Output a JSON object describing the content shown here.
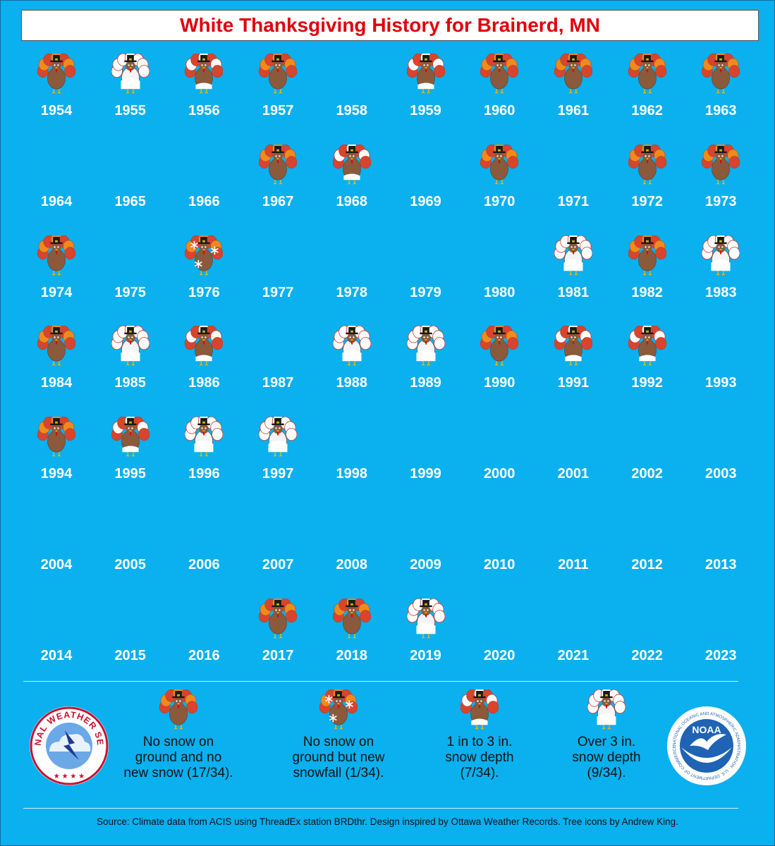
{
  "title": "White Thanksgiving History for Brainerd, MN",
  "colors": {
    "background": "#0bb0ef",
    "title_text": "#e0000b",
    "turkey_brown": "#8b5a3c",
    "feather_red": "#d8452c",
    "feather_orange": "#f08a1c",
    "snow_white": "#ffffff"
  },
  "chart_data": {
    "type": "table",
    "categories_legend": {
      "none": "No snow on ground and no new snow (17/34).",
      "new_snow": "No snow on ground but new snowfall (1/34).",
      "light_depth": "1 in to 3 in. snow depth (7/34).",
      "deep_depth": "Over 3 in. snow depth (9/34)."
    },
    "years": [
      {
        "year": "1954",
        "status": "none"
      },
      {
        "year": "1955",
        "status": "deep_depth"
      },
      {
        "year": "1956",
        "status": "light_depth"
      },
      {
        "year": "1957",
        "status": "none"
      },
      {
        "year": "1958",
        "status": "missing"
      },
      {
        "year": "1959",
        "status": "light_depth"
      },
      {
        "year": "1960",
        "status": "none"
      },
      {
        "year": "1961",
        "status": "none"
      },
      {
        "year": "1962",
        "status": "none"
      },
      {
        "year": "1963",
        "status": "none"
      },
      {
        "year": "1964",
        "status": "missing"
      },
      {
        "year": "1965",
        "status": "missing"
      },
      {
        "year": "1966",
        "status": "missing"
      },
      {
        "year": "1967",
        "status": "none"
      },
      {
        "year": "1968",
        "status": "light_depth"
      },
      {
        "year": "1969",
        "status": "missing"
      },
      {
        "year": "1970",
        "status": "none"
      },
      {
        "year": "1971",
        "status": "missing"
      },
      {
        "year": "1972",
        "status": "none"
      },
      {
        "year": "1973",
        "status": "none"
      },
      {
        "year": "1974",
        "status": "none"
      },
      {
        "year": "1975",
        "status": "missing"
      },
      {
        "year": "1976",
        "status": "new_snow"
      },
      {
        "year": "1977",
        "status": "missing"
      },
      {
        "year": "1978",
        "status": "missing"
      },
      {
        "year": "1979",
        "status": "missing"
      },
      {
        "year": "1980",
        "status": "missing"
      },
      {
        "year": "1981",
        "status": "deep_depth"
      },
      {
        "year": "1982",
        "status": "none"
      },
      {
        "year": "1983",
        "status": "deep_depth"
      },
      {
        "year": "1984",
        "status": "none"
      },
      {
        "year": "1985",
        "status": "deep_depth"
      },
      {
        "year": "1986",
        "status": "light_depth"
      },
      {
        "year": "1987",
        "status": "missing"
      },
      {
        "year": "1988",
        "status": "deep_depth"
      },
      {
        "year": "1989",
        "status": "deep_depth"
      },
      {
        "year": "1990",
        "status": "none"
      },
      {
        "year": "1991",
        "status": "light_depth"
      },
      {
        "year": "1992",
        "status": "light_depth"
      },
      {
        "year": "1993",
        "status": "missing"
      },
      {
        "year": "1994",
        "status": "none"
      },
      {
        "year": "1995",
        "status": "light_depth"
      },
      {
        "year": "1996",
        "status": "deep_depth"
      },
      {
        "year": "1997",
        "status": "deep_depth"
      },
      {
        "year": "1998",
        "status": "missing"
      },
      {
        "year": "1999",
        "status": "missing"
      },
      {
        "year": "2000",
        "status": "missing"
      },
      {
        "year": "2001",
        "status": "missing"
      },
      {
        "year": "2002",
        "status": "missing"
      },
      {
        "year": "2003",
        "status": "missing"
      },
      {
        "year": "2004",
        "status": "missing"
      },
      {
        "year": "2005",
        "status": "missing"
      },
      {
        "year": "2006",
        "status": "missing"
      },
      {
        "year": "2007",
        "status": "missing"
      },
      {
        "year": "2008",
        "status": "missing"
      },
      {
        "year": "2009",
        "status": "missing"
      },
      {
        "year": "2010",
        "status": "missing"
      },
      {
        "year": "2011",
        "status": "missing"
      },
      {
        "year": "2012",
        "status": "missing"
      },
      {
        "year": "2013",
        "status": "missing"
      },
      {
        "year": "2014",
        "status": "missing"
      },
      {
        "year": "2015",
        "status": "missing"
      },
      {
        "year": "2016",
        "status": "missing"
      },
      {
        "year": "2017",
        "status": "none"
      },
      {
        "year": "2018",
        "status": "none"
      },
      {
        "year": "2019",
        "status": "deep_depth"
      },
      {
        "year": "2020",
        "status": "missing"
      },
      {
        "year": "2021",
        "status": "missing"
      },
      {
        "year": "2022",
        "status": "missing"
      },
      {
        "year": "2023",
        "status": "missing"
      }
    ]
  },
  "legend": {
    "none": "No snow on\nground and no\nnew snow (17/34).",
    "new_snow": "No snow on\nground but new\nsnowfall (1/34).",
    "light_depth": "1 in to 3 in.\nsnow depth\n(7/34).",
    "deep_depth": "Over 3 in.\nsnow depth\n(9/34)."
  },
  "logos": {
    "nws": "NATIONAL WEATHER SERVICE",
    "nws_icon": "lightning-cloud-icon",
    "noaa": "NOAA",
    "noaa_ring": "NATIONAL OCEANIC AND ATMOSPHERIC ADMINISTRATION · U.S. DEPARTMENT OF COMMERCE",
    "noaa_icon": "seagull-icon"
  },
  "source": "Source: Climate data from ACIS using ThreadEx station BRDthr. Design inspired by Ottawa Weather Records. Tree icons by Andrew King."
}
